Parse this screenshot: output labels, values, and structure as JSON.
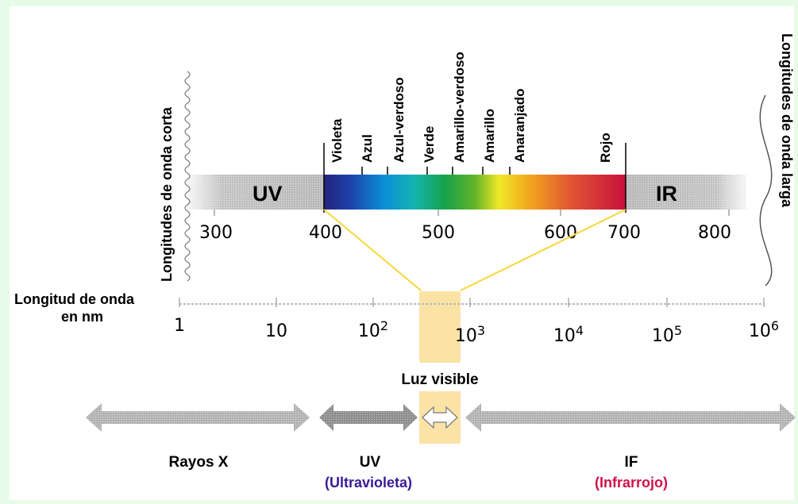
{
  "labels": {
    "short_wavelengths": "Longitudes de onda corta",
    "long_wavelengths": "Longitudes de onda larga",
    "wavelength_axis_line1": "Longitud de onda",
    "wavelength_axis_line2": "en nm",
    "visible_light": "Luz visible"
  },
  "bar": {
    "uv_label": "UV",
    "ir_label": "IR",
    "ticks": [
      "300",
      "400",
      "500",
      "600",
      "700",
      "800"
    ]
  },
  "colors_list": [
    "Violeta",
    "Azul",
    "Azul-verdoso",
    "Verde",
    "Amarillo-verdoso",
    "Amarillo",
    "Anaranjado",
    "Rojo"
  ],
  "log_axis": {
    "ticks": [
      {
        "base": "1",
        "exp": ""
      },
      {
        "base": "10",
        "exp": ""
      },
      {
        "base": "10",
        "exp": "2"
      },
      {
        "base": "10",
        "exp": "3"
      },
      {
        "base": "10",
        "exp": "4"
      },
      {
        "base": "10",
        "exp": "5"
      },
      {
        "base": "10",
        "exp": "6"
      }
    ]
  },
  "bands": {
    "xray": "Rayos X",
    "uv_short": "UV",
    "uv_long": "(Ultravioleta)",
    "if_short": "IF",
    "if_long": "(Infrarrojo)"
  },
  "colors": {
    "background": "#e8fbe9",
    "uv_text": "#3a1a96",
    "ir_text": "#d0104a",
    "connector": "#f5d83a",
    "highlight": "#fbe3a6",
    "arrow_gray": "#9a9a9a"
  }
}
